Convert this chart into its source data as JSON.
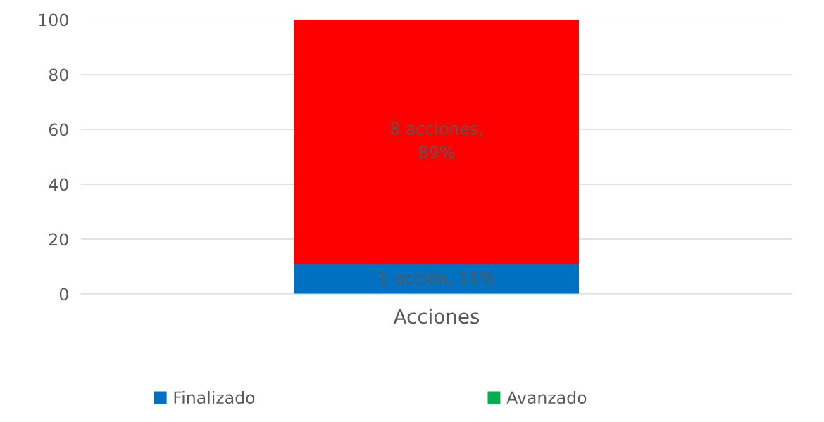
{
  "chart_data": {
    "type": "bar",
    "stacked": true,
    "categories": [
      "Acciones"
    ],
    "series": [
      {
        "name": "Finalizado",
        "color": "#0070c0",
        "values": [
          11
        ],
        "value_labels": [
          "1 acción, 11%"
        ]
      },
      {
        "name": "Avanzado",
        "color": "#00b050",
        "values": [
          0
        ],
        "value_labels": [
          null
        ]
      },
      {
        "color": "#ff0000",
        "values": [
          89
        ],
        "value_labels": [
          "8 acciones,\n89%"
        ]
      }
    ],
    "ylim": [
      0,
      100
    ],
    "yticks": [
      0,
      20,
      40,
      60,
      80,
      100
    ],
    "grid": "y",
    "legend": "bottom"
  }
}
